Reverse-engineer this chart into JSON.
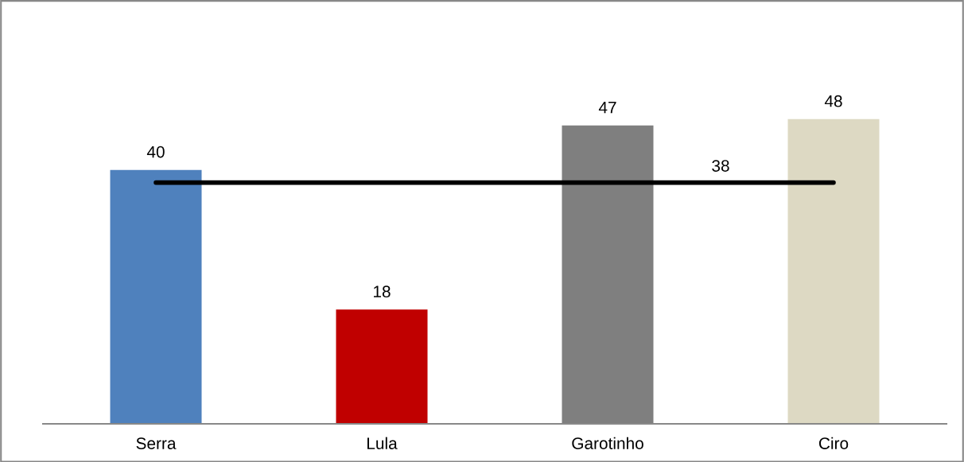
{
  "chart_data": {
    "type": "bar",
    "categories": [
      "Serra",
      "Lula",
      "Garotinho",
      "Ciro"
    ],
    "values": [
      40,
      18,
      47,
      48
    ],
    "colors": [
      "#4f81bd",
      "#c00000",
      "#7f7f7f",
      "#ddd9c3"
    ],
    "data_labels": true,
    "grid": false,
    "legend": false,
    "ref_lines": [
      {
        "axis": "y",
        "value": 38,
        "label": "38",
        "color": "#000000",
        "line_style": "solid"
      }
    ]
  }
}
